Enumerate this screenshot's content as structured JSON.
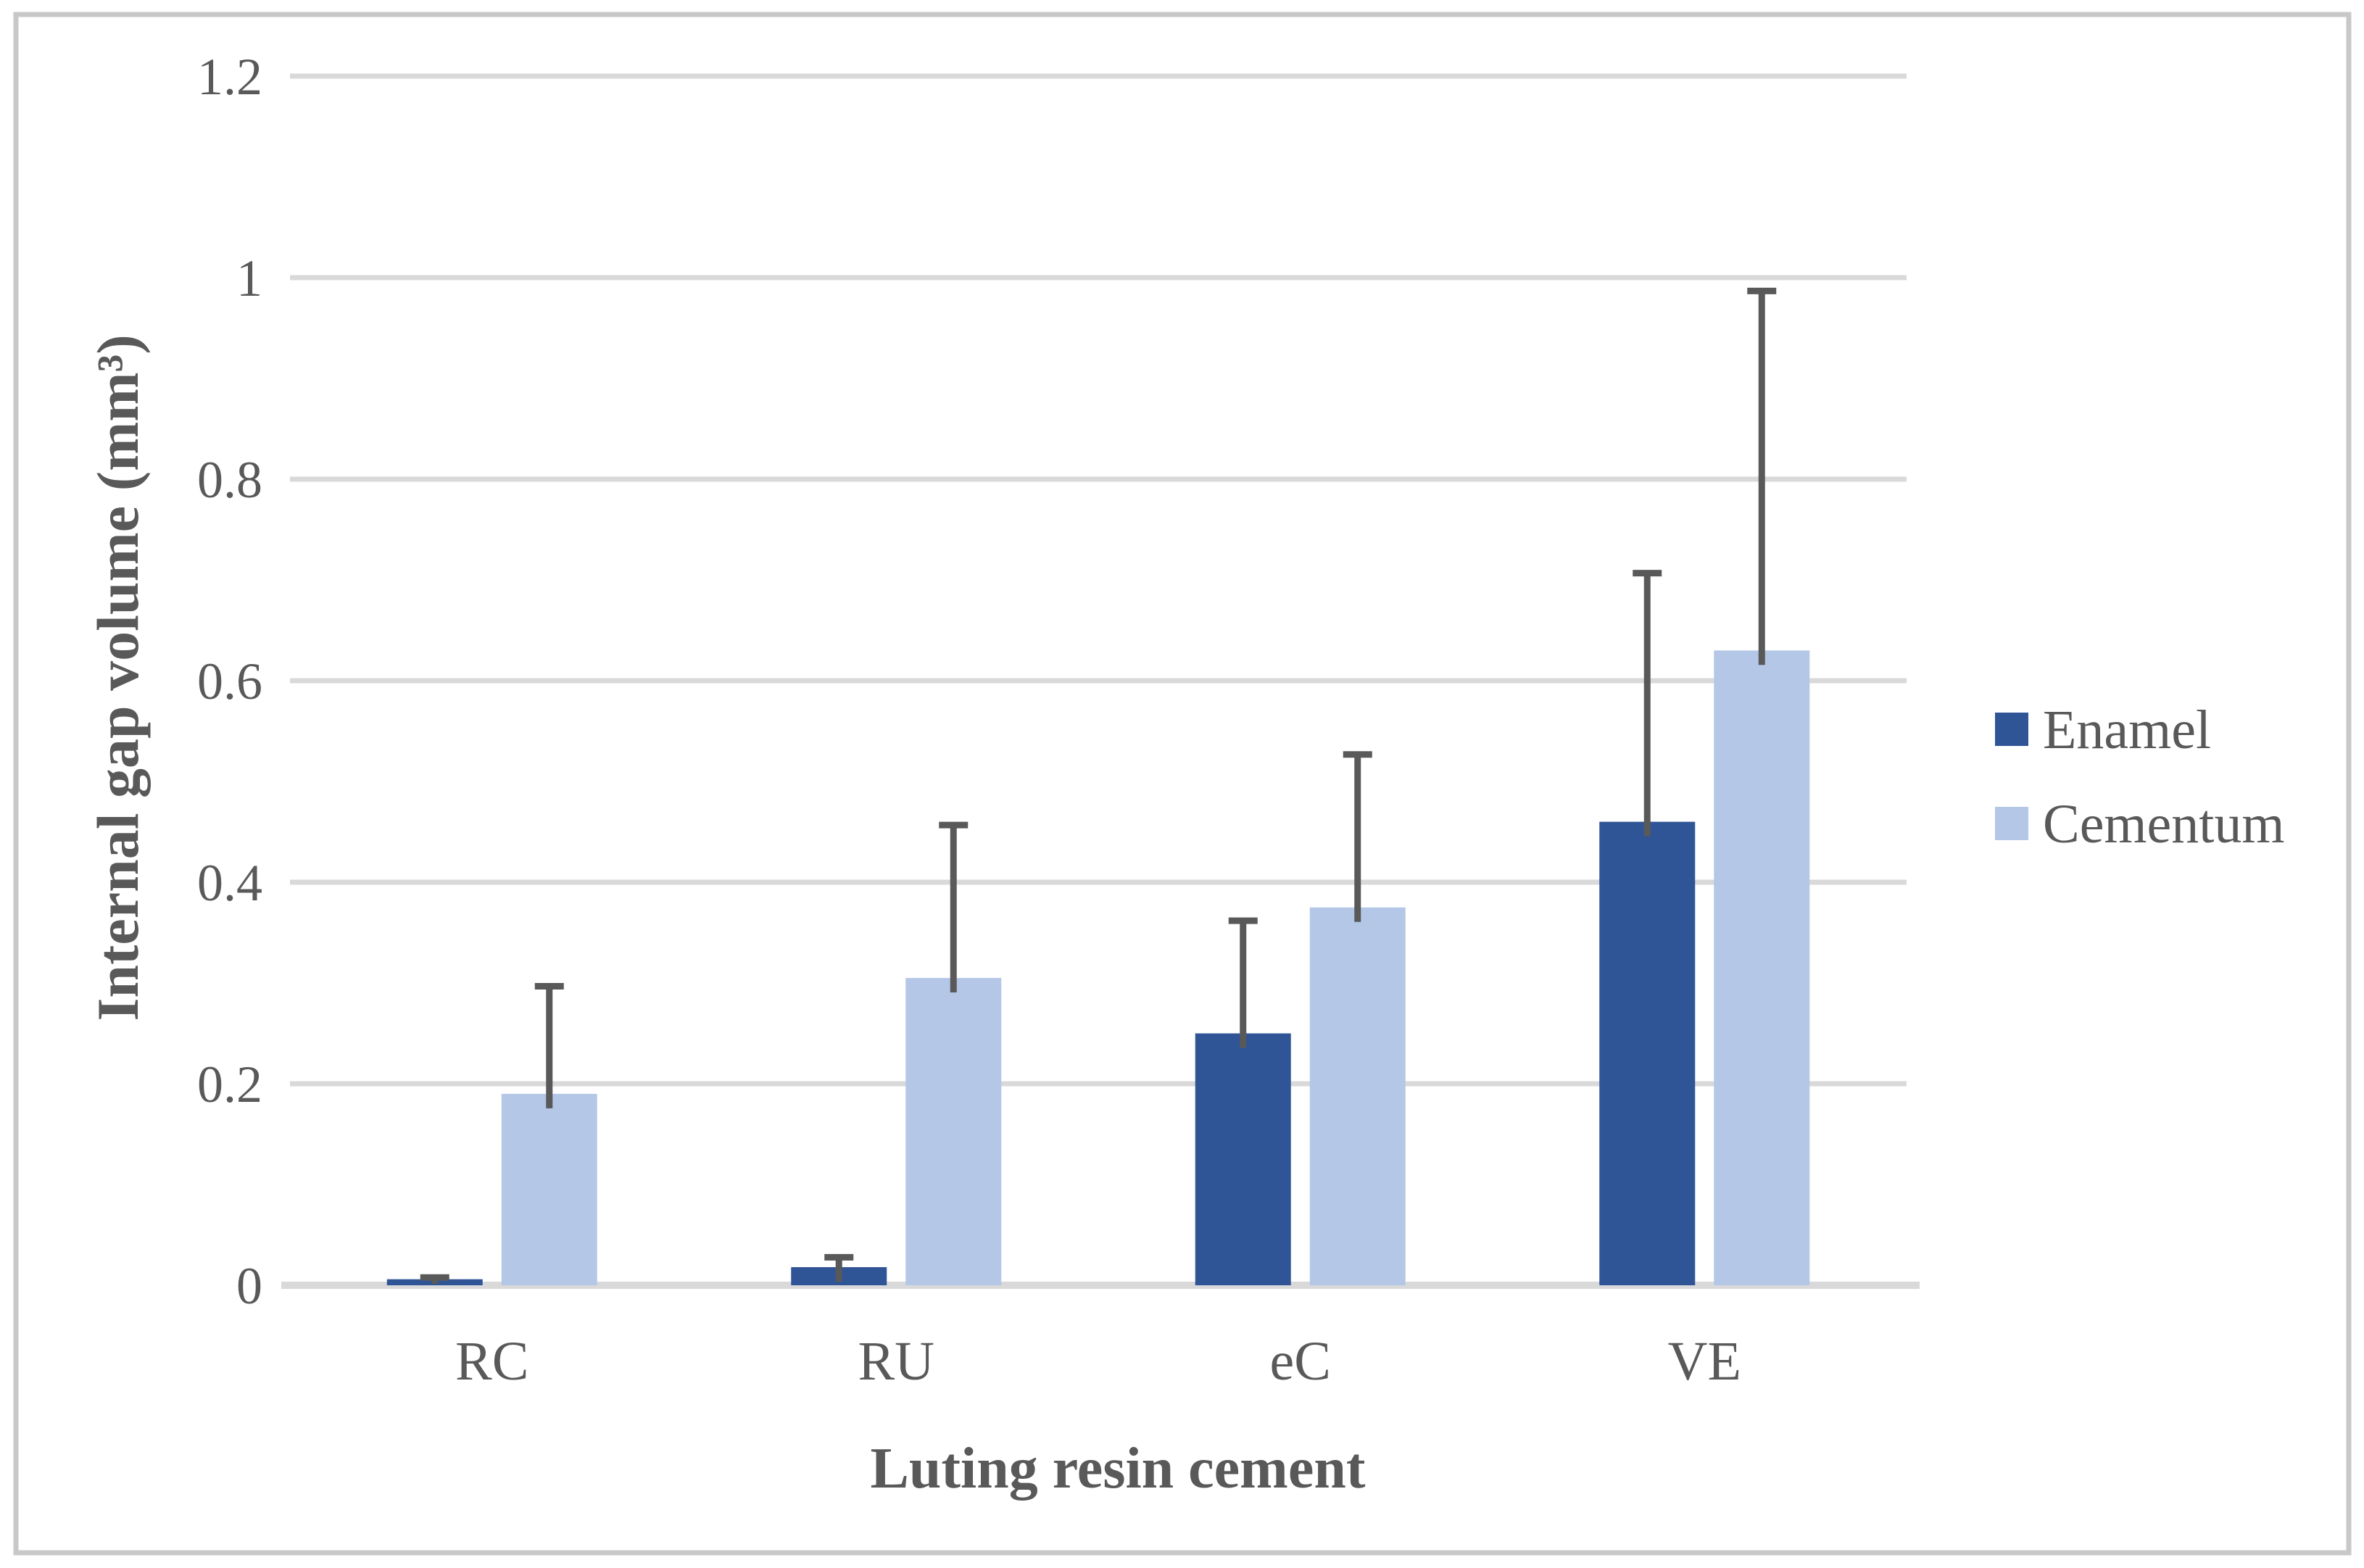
{
  "figure": {
    "background": "#ffffff",
    "border_color": "#c8c8c8"
  },
  "chart_data": {
    "type": "bar",
    "title": "",
    "categories": [
      "RC",
      "RU",
      "eC",
      "VE"
    ],
    "series": [
      {
        "name": "Enamel",
        "color": "#2f5597",
        "values": [
          0.006,
          0.018,
          0.25,
          0.46
        ],
        "error_plus": [
          0.005,
          0.013,
          0.115,
          0.25
        ]
      },
      {
        "name": "Cementum",
        "color": "#b4c7e7",
        "values": [
          0.19,
          0.305,
          0.375,
          0.63
        ],
        "error_plus": [
          0.11,
          0.155,
          0.155,
          0.36
        ]
      }
    ],
    "xlabel": "Luting resin cement",
    "ylabel": "Internal gap volume (mm³)",
    "ylim": [
      0,
      1.2
    ],
    "yticks": [
      {
        "value": 0,
        "label": "0"
      },
      {
        "value": 0.2,
        "label": "0.2"
      },
      {
        "value": 0.4,
        "label": "0.4"
      },
      {
        "value": 0.6,
        "label": "0.6"
      },
      {
        "value": 0.8,
        "label": "0.8"
      },
      {
        "value": 1,
        "label": "1"
      },
      {
        "value": 1.2,
        "label": "1.2"
      }
    ],
    "grid": true,
    "legend_position": "right",
    "colors": {
      "error_bar": "#595959",
      "gridline": "#d9d9d9",
      "axis_line": "#d9d9d9",
      "text": "#595959"
    }
  }
}
